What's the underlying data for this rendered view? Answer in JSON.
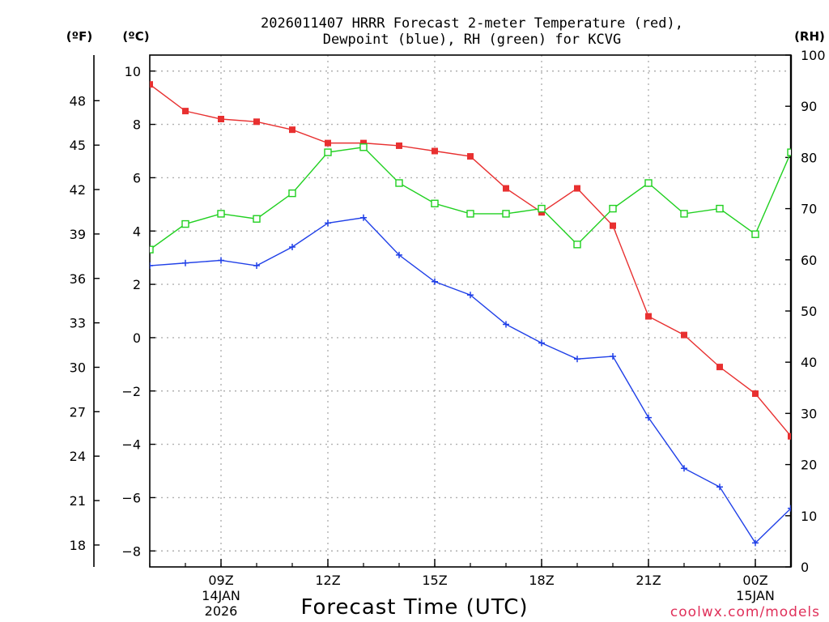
{
  "chart_data": {
    "type": "line",
    "title_line1": "2026011407 HRRR Forecast 2-meter Temperature (red),",
    "title_line2": "Dewpoint (blue), RH (green) for KCVG",
    "xlabel": "Forecast Time (UTC)",
    "credit": "coolwx.com/models",
    "unit_f": "(ºF)",
    "unit_c": "(ºC)",
    "unit_rh": "(RH)",
    "ylim_c": [
      -8.6,
      10.6
    ],
    "ylim_rh": [
      0,
      100
    ],
    "c_ticks": [
      "10",
      "8",
      "6",
      "4",
      "2",
      "0",
      "−2",
      "−4",
      "−6",
      "−8"
    ],
    "f_ticks": [
      "48",
      "45",
      "42",
      "39",
      "36",
      "33",
      "30",
      "27",
      "24",
      "21",
      "18"
    ],
    "rh_ticks": [
      "100",
      "90",
      "80",
      "70",
      "60",
      "50",
      "40",
      "30",
      "20",
      "10",
      "0"
    ],
    "x_ticks": [
      {
        "hour": 9,
        "label": "09Z",
        "sub1": "14JAN",
        "sub2": "2026"
      },
      {
        "hour": 12,
        "label": "12Z",
        "sub1": "",
        "sub2": ""
      },
      {
        "hour": 15,
        "label": "15Z",
        "sub1": "",
        "sub2": ""
      },
      {
        "hour": 18,
        "label": "18Z",
        "sub1": "",
        "sub2": ""
      },
      {
        "hour": 21,
        "label": "21Z",
        "sub1": "",
        "sub2": ""
      },
      {
        "hour": 24,
        "label": "00Z",
        "sub1": "15JAN",
        "sub2": ""
      }
    ],
    "x_hours": [
      7,
      8,
      9,
      10,
      11,
      12,
      13,
      14,
      15,
      16,
      17,
      18,
      19,
      20,
      21,
      22,
      23,
      24,
      25
    ],
    "x_range": [
      7,
      25
    ],
    "series": [
      {
        "name": "2-meter Temperature",
        "unit": "C",
        "color": "#e83030",
        "marker": "filled-square",
        "values": [
          9.5,
          8.5,
          8.2,
          8.1,
          7.8,
          7.3,
          7.3,
          7.2,
          7.0,
          6.8,
          5.6,
          4.7,
          5.6,
          4.2,
          0.8,
          0.1,
          -1.1,
          -2.1,
          -3.7
        ]
      },
      {
        "name": "Dewpoint",
        "unit": "C",
        "color": "#2040e8",
        "marker": "plus",
        "values": [
          2.7,
          2.8,
          2.9,
          2.7,
          3.4,
          4.3,
          4.5,
          3.1,
          2.1,
          1.6,
          0.5,
          -0.2,
          -0.8,
          -0.7,
          -3.0,
          -4.9,
          -5.6,
          -7.7,
          -6.4
        ]
      },
      {
        "name": "RH",
        "unit": "%",
        "color": "#20d020",
        "marker": "open-square",
        "values": [
          62,
          67,
          69,
          68,
          73,
          81,
          82,
          75,
          71,
          69,
          69,
          70,
          63,
          70,
          75,
          69,
          70,
          65,
          81
        ]
      }
    ]
  }
}
